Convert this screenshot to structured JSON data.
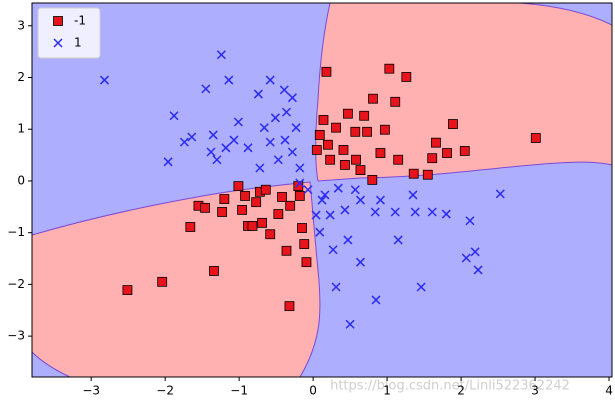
{
  "chart_data": {
    "type": "scatter",
    "xlim": [
      -3.8,
      4.04
    ],
    "ylim": [
      -3.79,
      3.44
    ],
    "xticks": [
      {
        "value": -3,
        "label": "−3"
      },
      {
        "value": -2,
        "label": "−2"
      },
      {
        "value": -1,
        "label": "−1"
      },
      0,
      1,
      2,
      3,
      4
    ],
    "yticks": [
      {
        "value": -3,
        "label": "−3"
      },
      {
        "value": -2,
        "label": "−2"
      },
      {
        "value": -1,
        "label": "−1"
      },
      0,
      1,
      2,
      3
    ],
    "legend": "upper left",
    "watermark": "https://blog.csdn.net/Linli522362242",
    "series": [
      {
        "name": "-1",
        "color": "#e8141c",
        "marker": "square",
        "x": [
          3.01,
          1.89,
          1.03,
          1.26,
          0.18,
          0.81,
          1.11,
          0.47,
          0.69,
          0.97,
          0.73,
          0.57,
          1.66,
          2.05,
          1.81,
          1.61,
          1.15,
          0.91,
          0.41,
          0.2,
          0.09,
          0.05,
          0.23,
          0.43,
          0.64,
          0.8,
          1.36,
          1.55,
          0.14,
          0.31,
          0.58,
          -2.51,
          -2.04,
          -1.34,
          -0.32,
          -1.66,
          -1.55,
          -1.46,
          -1.23,
          -0.96,
          -1.01,
          -1.2,
          -0.88,
          -0.69,
          -0.36,
          -0.12,
          -0.15,
          -0.09,
          -0.58,
          -0.47,
          -0.31,
          -0.77,
          -0.72,
          -0.42,
          -0.18,
          -0.2,
          -0.64,
          -0.92,
          -0.82
        ],
        "values": [
          0.83,
          1.1,
          2.17,
          2.01,
          2.11,
          1.59,
          1.53,
          1.3,
          1.26,
          0.99,
          0.95,
          0.95,
          0.74,
          0.58,
          0.54,
          0.44,
          0.41,
          0.54,
          0.6,
          0.7,
          0.89,
          0.6,
          0.41,
          0.31,
          0.21,
          0.02,
          0.14,
          0.12,
          1.18,
          1.03,
          0.41,
          -2.11,
          -1.95,
          -1.74,
          -2.42,
          -0.89,
          -0.48,
          -0.52,
          -0.6,
          -0.56,
          -0.1,
          -0.35,
          -0.87,
          -0.81,
          -1.35,
          -1.22,
          -0.91,
          -1.57,
          -1.03,
          -0.64,
          -0.48,
          -0.41,
          -0.21,
          -0.31,
          -0.29,
          -0.1,
          -0.17,
          -0.29,
          -0.87
        ]
      },
      {
        "name": "1",
        "color": "#2a2af0",
        "marker": "x",
        "x": [
          -2.82,
          -1.24,
          -1.14,
          -1.45,
          -1.88,
          -1.96,
          -1.74,
          -1.64,
          -1.35,
          -1.38,
          -1.3,
          -1.07,
          -0.88,
          -0.74,
          -0.58,
          -0.39,
          -0.28,
          -0.36,
          -0.51,
          -0.66,
          -0.58,
          -0.38,
          -0.23,
          -0.28,
          -0.47,
          -0.72,
          -0.18,
          -1.01,
          -1.18,
          2.53,
          2.12,
          2.19,
          2.07,
          2.23,
          1.46,
          0.85,
          0.5,
          0.31,
          0.64,
          0.47,
          0.27,
          0.09,
          0.23,
          0.43,
          0.64,
          0.84,
          1.11,
          1.15,
          1.38,
          1.61,
          1.8,
          1.35,
          0.91,
          0.57,
          0.34,
          0.12,
          0.04,
          -0.07,
          -0.18,
          0.16
        ],
        "values": [
          1.95,
          2.44,
          1.95,
          1.78,
          1.26,
          0.37,
          0.75,
          0.85,
          0.89,
          0.56,
          0.41,
          0.79,
          0.64,
          1.68,
          1.95,
          1.76,
          1.61,
          1.33,
          1.22,
          1.03,
          0.75,
          0.79,
          1.03,
          0.56,
          0.41,
          0.25,
          0.25,
          1.14,
          0.64,
          -0.25,
          -0.77,
          -1.37,
          -1.49,
          -1.72,
          -2.05,
          -2.3,
          -2.77,
          -2.05,
          -1.57,
          -1.14,
          -1.33,
          -0.99,
          -0.66,
          -0.56,
          -0.37,
          -0.6,
          -0.6,
          -1.14,
          -0.6,
          -0.6,
          -0.64,
          -0.27,
          -0.37,
          -0.17,
          -0.14,
          -0.37,
          -0.66,
          -0.17,
          -0.04,
          -0.27
        ]
      }
    ]
  }
}
